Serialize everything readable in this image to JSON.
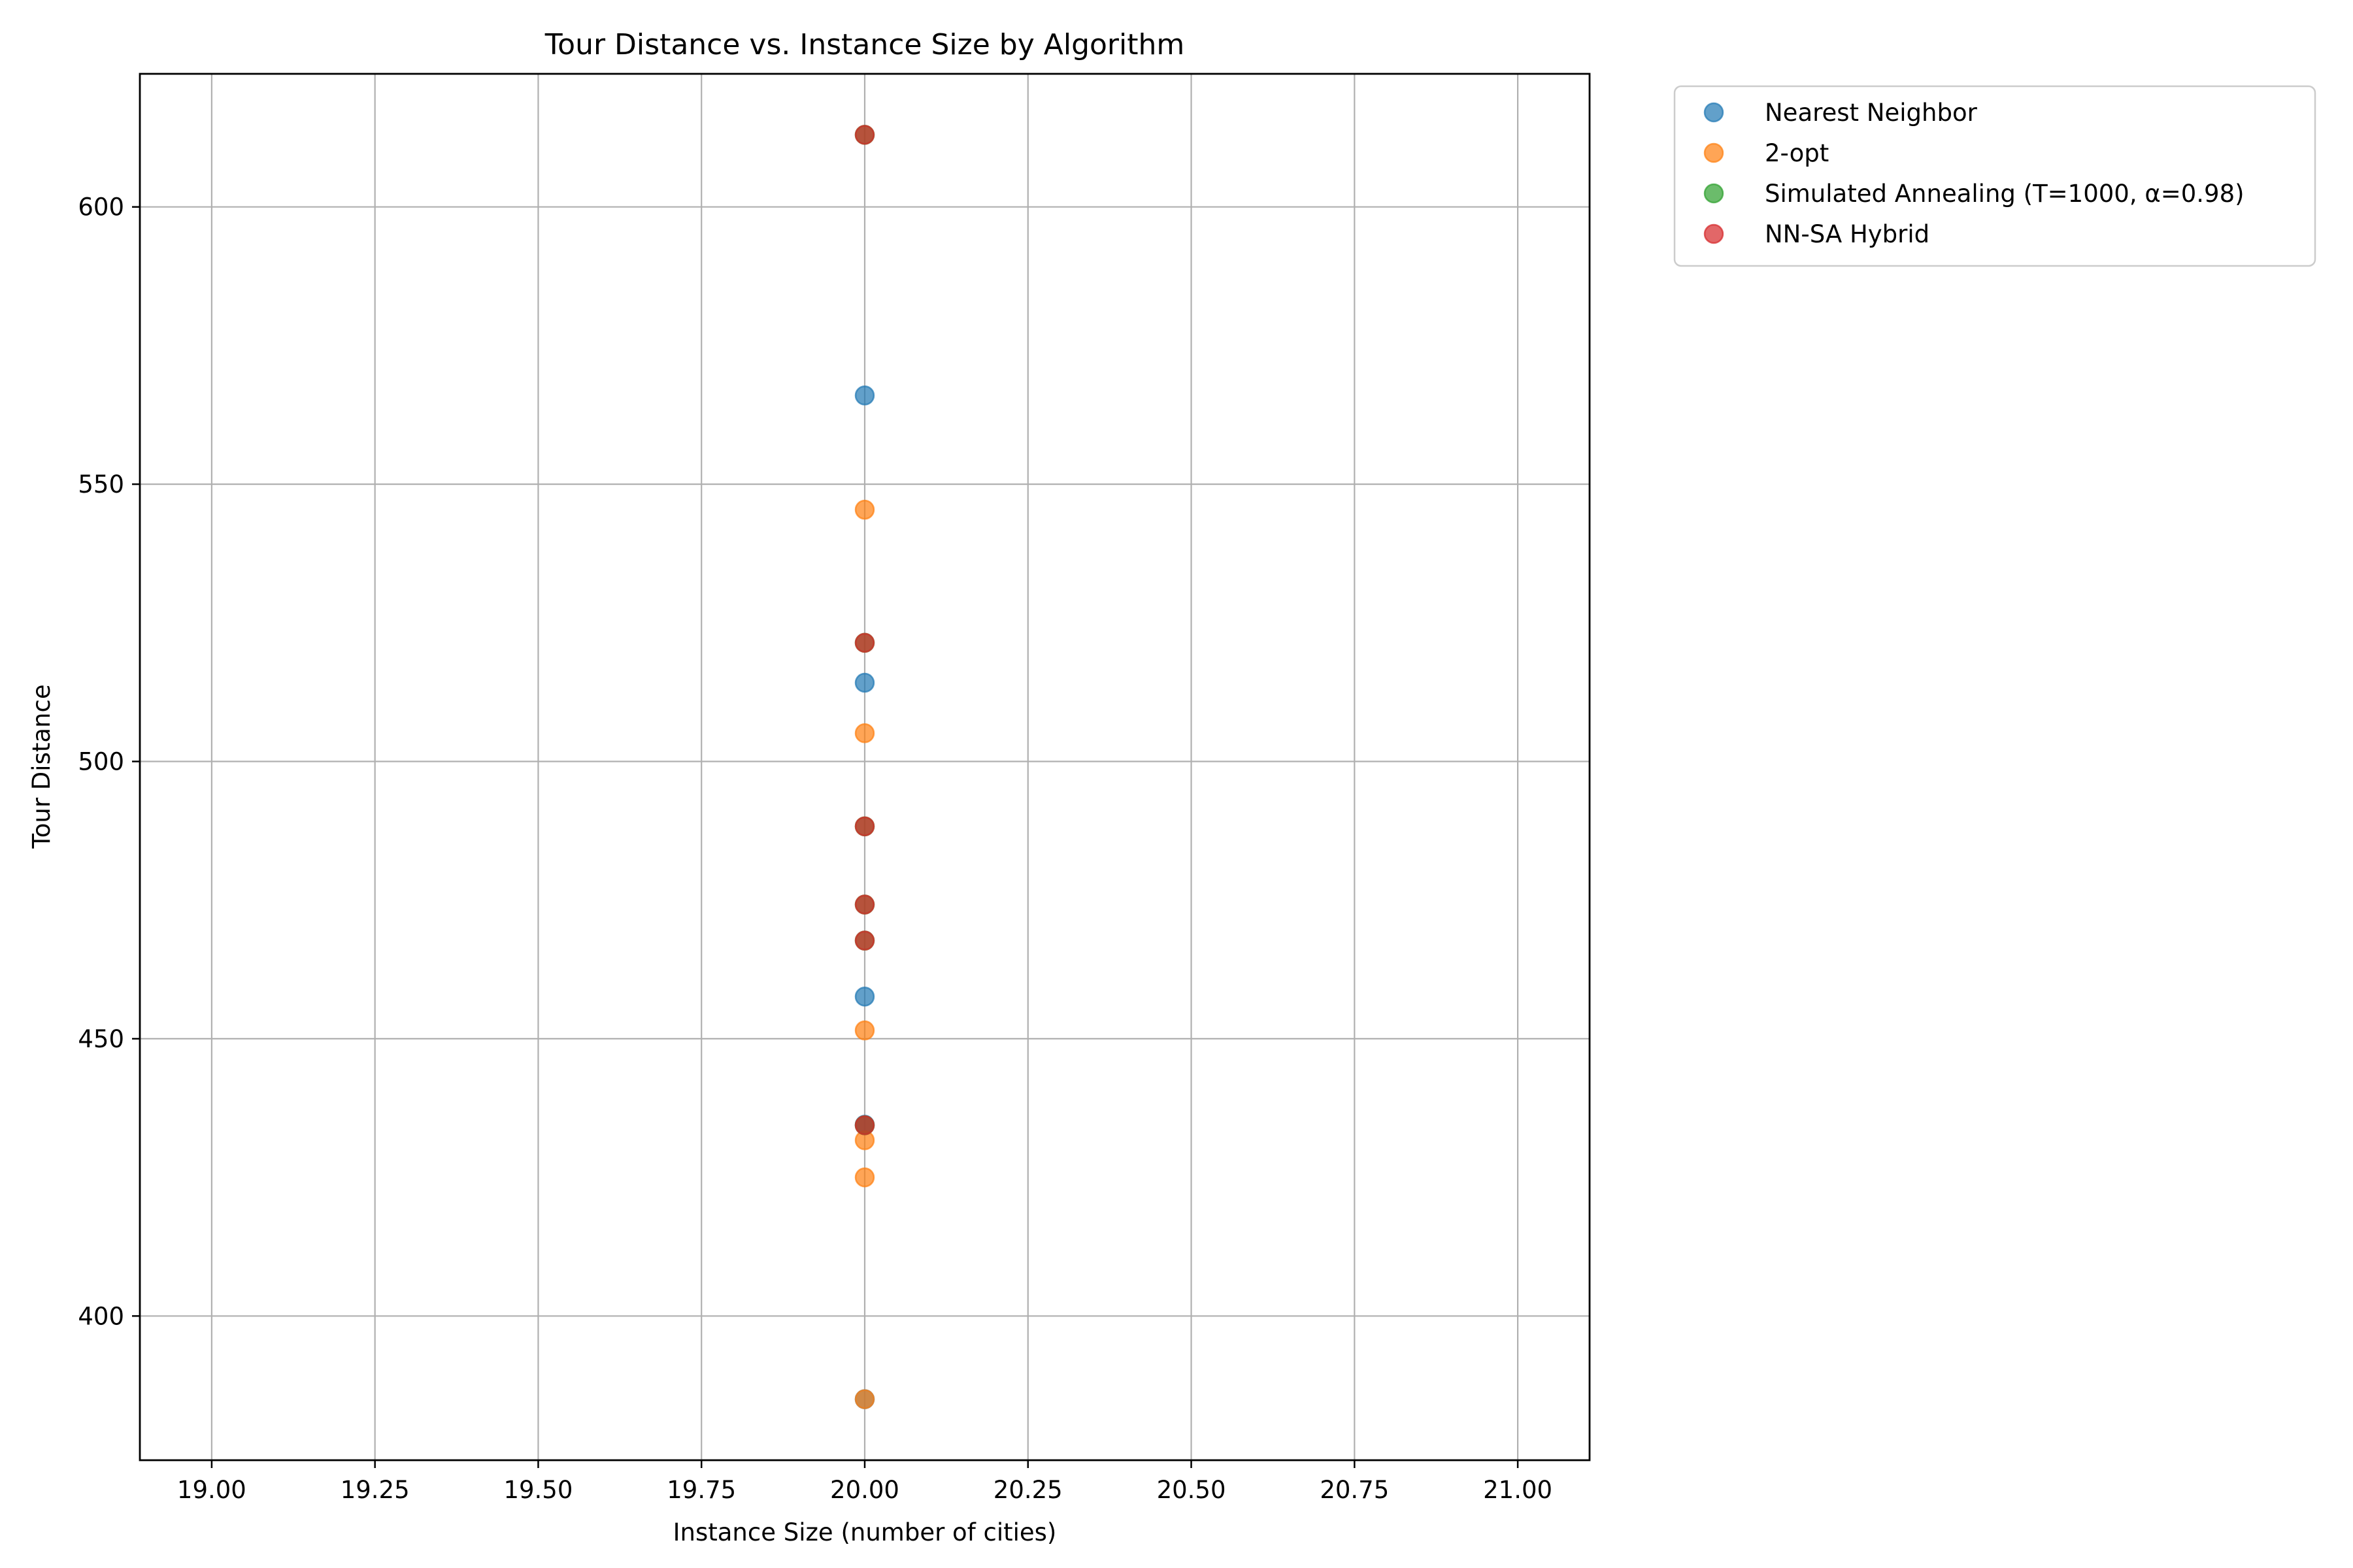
{
  "chart_data": {
    "type": "scatter",
    "title": "Tour Distance vs. Instance Size by Algorithm",
    "xlabel": "Instance Size (number of cities)",
    "ylabel": "Tour Distance",
    "xlim": [
      18.89,
      21.11
    ],
    "ylim": [
      374,
      624
    ],
    "x_ticks": [
      19.0,
      19.25,
      19.5,
      19.75,
      20.0,
      20.25,
      20.5,
      20.75,
      21.0
    ],
    "x_tick_labels": [
      "19.00",
      "19.25",
      "19.50",
      "19.75",
      "20.00",
      "20.25",
      "20.50",
      "20.75",
      "21.00"
    ],
    "y_ticks": [
      400,
      450,
      500,
      550,
      600
    ],
    "y_tick_labels": [
      "400",
      "450",
      "500",
      "550",
      "600"
    ],
    "grid": true,
    "legend_position": "outside-top-right",
    "marker_alpha": 0.7,
    "series": [
      {
        "name": "Nearest Neighbor",
        "color": "#1f77b4",
        "points": [
          [
            20,
            566
          ],
          [
            20,
            514.2
          ],
          [
            20,
            457.6
          ],
          [
            20,
            434.5
          ],
          [
            20,
            385
          ]
        ]
      },
      {
        "name": "2-opt",
        "color": "#ff7f0e",
        "points": [
          [
            20,
            545.4
          ],
          [
            20,
            505.1
          ],
          [
            20,
            451.5
          ],
          [
            20,
            431.7
          ],
          [
            20,
            425
          ],
          [
            20,
            385
          ]
        ]
      },
      {
        "name": "Simulated Annealing (T=1000, α=0.98)",
        "color": "#2ca02c",
        "points": [
          [
            20,
            613
          ],
          [
            20,
            521.4
          ],
          [
            20,
            488.3
          ],
          [
            20,
            474.2
          ],
          [
            20,
            467.7
          ],
          [
            20,
            434.4
          ]
        ]
      },
      {
        "name": "NN-SA Hybrid",
        "color": "#d62728",
        "points": [
          [
            20,
            613
          ],
          [
            20,
            521.4
          ],
          [
            20,
            488.3
          ],
          [
            20,
            474.2
          ],
          [
            20,
            467.7
          ],
          [
            20,
            434.4
          ]
        ]
      }
    ]
  }
}
